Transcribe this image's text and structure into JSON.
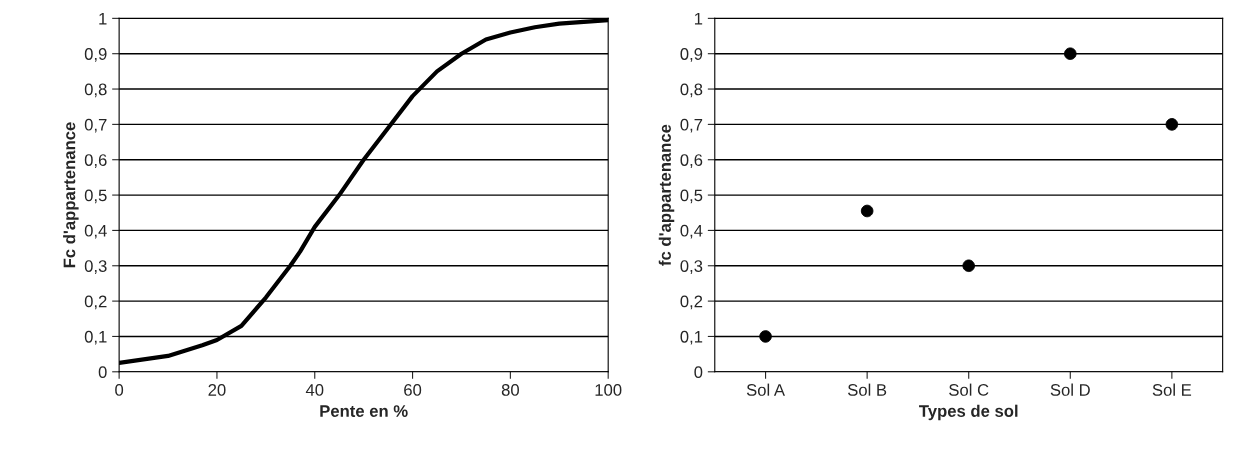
{
  "chart_data": [
    {
      "type": "line",
      "xlabel": "Pente en %",
      "ylabel": "Fc d'appartenance",
      "xlim": [
        0,
        100
      ],
      "xticks": [
        0,
        20,
        40,
        60,
        80,
        100
      ],
      "ylim": [
        0,
        1
      ],
      "yticks": [
        {
          "value": 0,
          "label": "0"
        },
        {
          "value": 0.1,
          "label": "0,1"
        },
        {
          "value": 0.2,
          "label": "0,2"
        },
        {
          "value": 0.3,
          "label": "0,3"
        },
        {
          "value": 0.4,
          "label": "0,4"
        },
        {
          "value": 0.5,
          "label": "0,5"
        },
        {
          "value": 0.6,
          "label": "0,6"
        },
        {
          "value": 0.7,
          "label": "0,7"
        },
        {
          "value": 0.8,
          "label": "0,8"
        },
        {
          "value": 0.9,
          "label": "0,9"
        },
        {
          "value": 1,
          "label": "1"
        }
      ],
      "grid": "y",
      "marker": "none",
      "line_style": "solid",
      "x": [
        0,
        10,
        17,
        20,
        25,
        30,
        35,
        37,
        40,
        45,
        50,
        55,
        60,
        65,
        70,
        75,
        80,
        85,
        90,
        100
      ],
      "series": [
        {
          "color": "#000000",
          "values": [
            0.025,
            0.045,
            0.075,
            0.09,
            0.13,
            0.21,
            0.3,
            0.34,
            0.41,
            0.5,
            0.6,
            0.69,
            0.78,
            0.85,
            0.9,
            0.94,
            0.96,
            0.975,
            0.985,
            0.995
          ]
        }
      ]
    },
    {
      "type": "scatter",
      "xlabel": "Types de sol",
      "ylabel": "fc d'appartenance",
      "categories": [
        "Sol A",
        "Sol B",
        "Sol C",
        "Sol D",
        "Sol E"
      ],
      "ylim": [
        0,
        1
      ],
      "yticks": [
        {
          "value": 0,
          "label": "0"
        },
        {
          "value": 0.1,
          "label": "0,1"
        },
        {
          "value": 0.2,
          "label": "0,2"
        },
        {
          "value": 0.3,
          "label": "0,3"
        },
        {
          "value": 0.4,
          "label": "0,4"
        },
        {
          "value": 0.5,
          "label": "0,5"
        },
        {
          "value": 0.6,
          "label": "0,6"
        },
        {
          "value": 0.7,
          "label": "0,7"
        },
        {
          "value": 0.8,
          "label": "0,8"
        },
        {
          "value": 0.9,
          "label": "0,9"
        },
        {
          "value": 1,
          "label": "1"
        }
      ],
      "grid": "y",
      "marker": "circle",
      "series": [
        {
          "color": "#000000",
          "values": [
            0.1,
            0.455,
            0.3,
            0.9,
            0.7
          ]
        }
      ]
    }
  ]
}
